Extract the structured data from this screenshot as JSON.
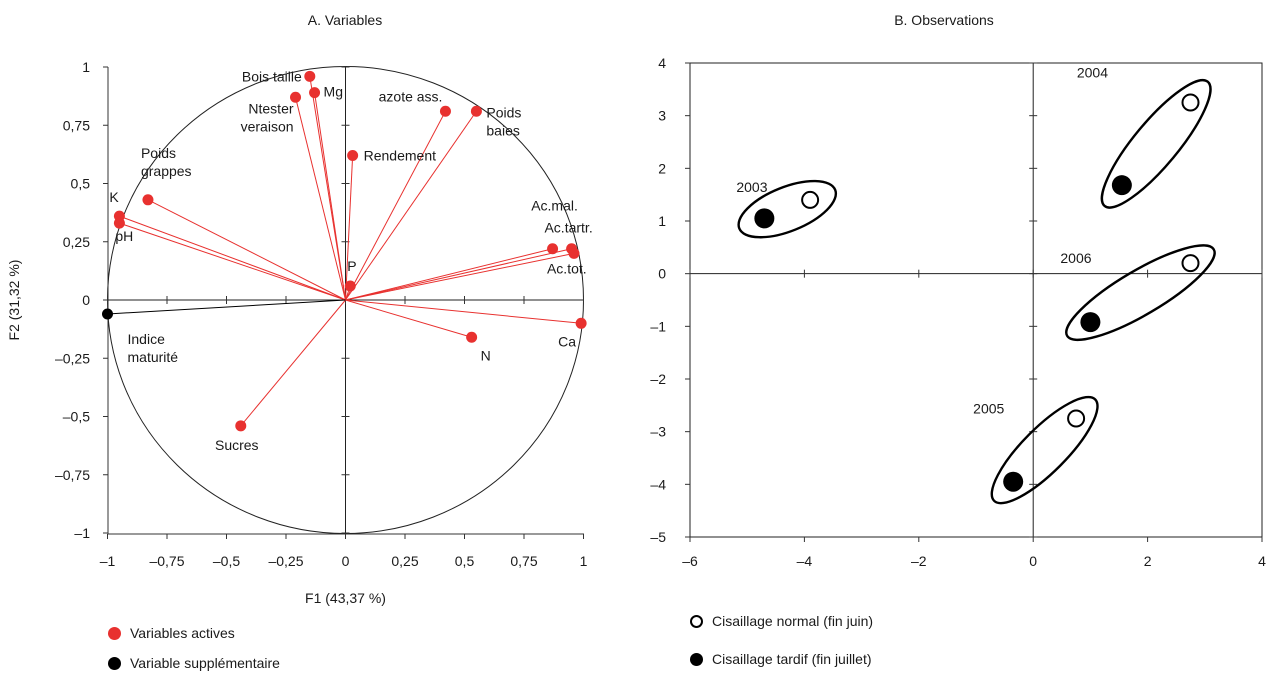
{
  "chart_data": [
    {
      "type": "scatter",
      "title": "A. Variables",
      "xlabel": "F1 (43,37 %)",
      "ylabel": "F2 (31,32 %)",
      "xlim": [
        -1,
        1
      ],
      "ylim": [
        -1,
        1
      ],
      "xticks": [
        "–1",
        "–0,75",
        "–0,5",
        "–0,25",
        "0",
        "0,25",
        "0,5",
        "0,75",
        "1"
      ],
      "yticks": [
        "1",
        "0,75",
        "0,5",
        "0,25",
        "0",
        "–0,25",
        "–0,5",
        "–0,75",
        "–1"
      ],
      "correlation_circle": true,
      "series": [
        {
          "name": "Variables actives",
          "color": "#e8312f",
          "points": [
            {
              "label": "Bois taille",
              "x": -0.15,
              "y": 0.96
            },
            {
              "label": "Mg",
              "x": -0.13,
              "y": 0.89
            },
            {
              "label": "Ntester veraison",
              "x": -0.21,
              "y": 0.87
            },
            {
              "label": "azote ass.",
              "x": 0.42,
              "y": 0.81
            },
            {
              "label": "Poids baies",
              "x": 0.55,
              "y": 0.81
            },
            {
              "label": "Rendement",
              "x": 0.03,
              "y": 0.62
            },
            {
              "label": "Poids grappes",
              "x": -0.83,
              "y": 0.43
            },
            {
              "label": "K",
              "x": -0.95,
              "y": 0.36
            },
            {
              "label": "pH",
              "x": -0.95,
              "y": 0.33
            },
            {
              "label": "Ac.mal.",
              "x": 0.87,
              "y": 0.22
            },
            {
              "label": "Ac.tartr.",
              "x": 0.95,
              "y": 0.22
            },
            {
              "label": "Ac.tot.",
              "x": 0.96,
              "y": 0.2
            },
            {
              "label": "P",
              "x": 0.02,
              "y": 0.06
            },
            {
              "label": "N",
              "x": 0.53,
              "y": -0.16
            },
            {
              "label": "Ca",
              "x": 0.99,
              "y": -0.1
            },
            {
              "label": "Sucres",
              "x": -0.44,
              "y": -0.54
            }
          ]
        },
        {
          "name": "Variable supplémentaire",
          "color": "#000000",
          "points": [
            {
              "label": "Indice maturité",
              "x": -1.0,
              "y": -0.06
            }
          ]
        }
      ],
      "legend": [
        "Variables actives",
        "Variable supplémentaire"
      ],
      "legend_position": "bottom-left"
    },
    {
      "type": "scatter",
      "title": "B. Observations",
      "xlim": [
        -6,
        4
      ],
      "ylim": [
        -5,
        4
      ],
      "xticks": [
        "–6",
        "–4",
        "–2",
        "0",
        "2",
        "4"
      ],
      "yticks": [
        "4",
        "3",
        "2",
        "1",
        "0",
        "–1",
        "–2",
        "–3",
        "–4",
        "–5"
      ],
      "groups": [
        {
          "label": "2003",
          "normal": [
            -3.9,
            1.4
          ],
          "tardif": [
            -4.7,
            1.05
          ]
        },
        {
          "label": "2004",
          "normal": [
            2.75,
            3.25
          ],
          "tardif": [
            1.55,
            1.68
          ]
        },
        {
          "label": "2006",
          "normal": [
            2.75,
            0.2
          ],
          "tardif": [
            1.0,
            -0.92
          ]
        },
        {
          "label": "2005",
          "normal": [
            0.75,
            -2.75
          ],
          "tardif": [
            -0.35,
            -3.95
          ]
        }
      ],
      "legend": [
        "Cisaillage normal (fin juin)",
        "Cisaillage tardif (fin juillet)"
      ],
      "legend_position": "bottom-left"
    }
  ]
}
